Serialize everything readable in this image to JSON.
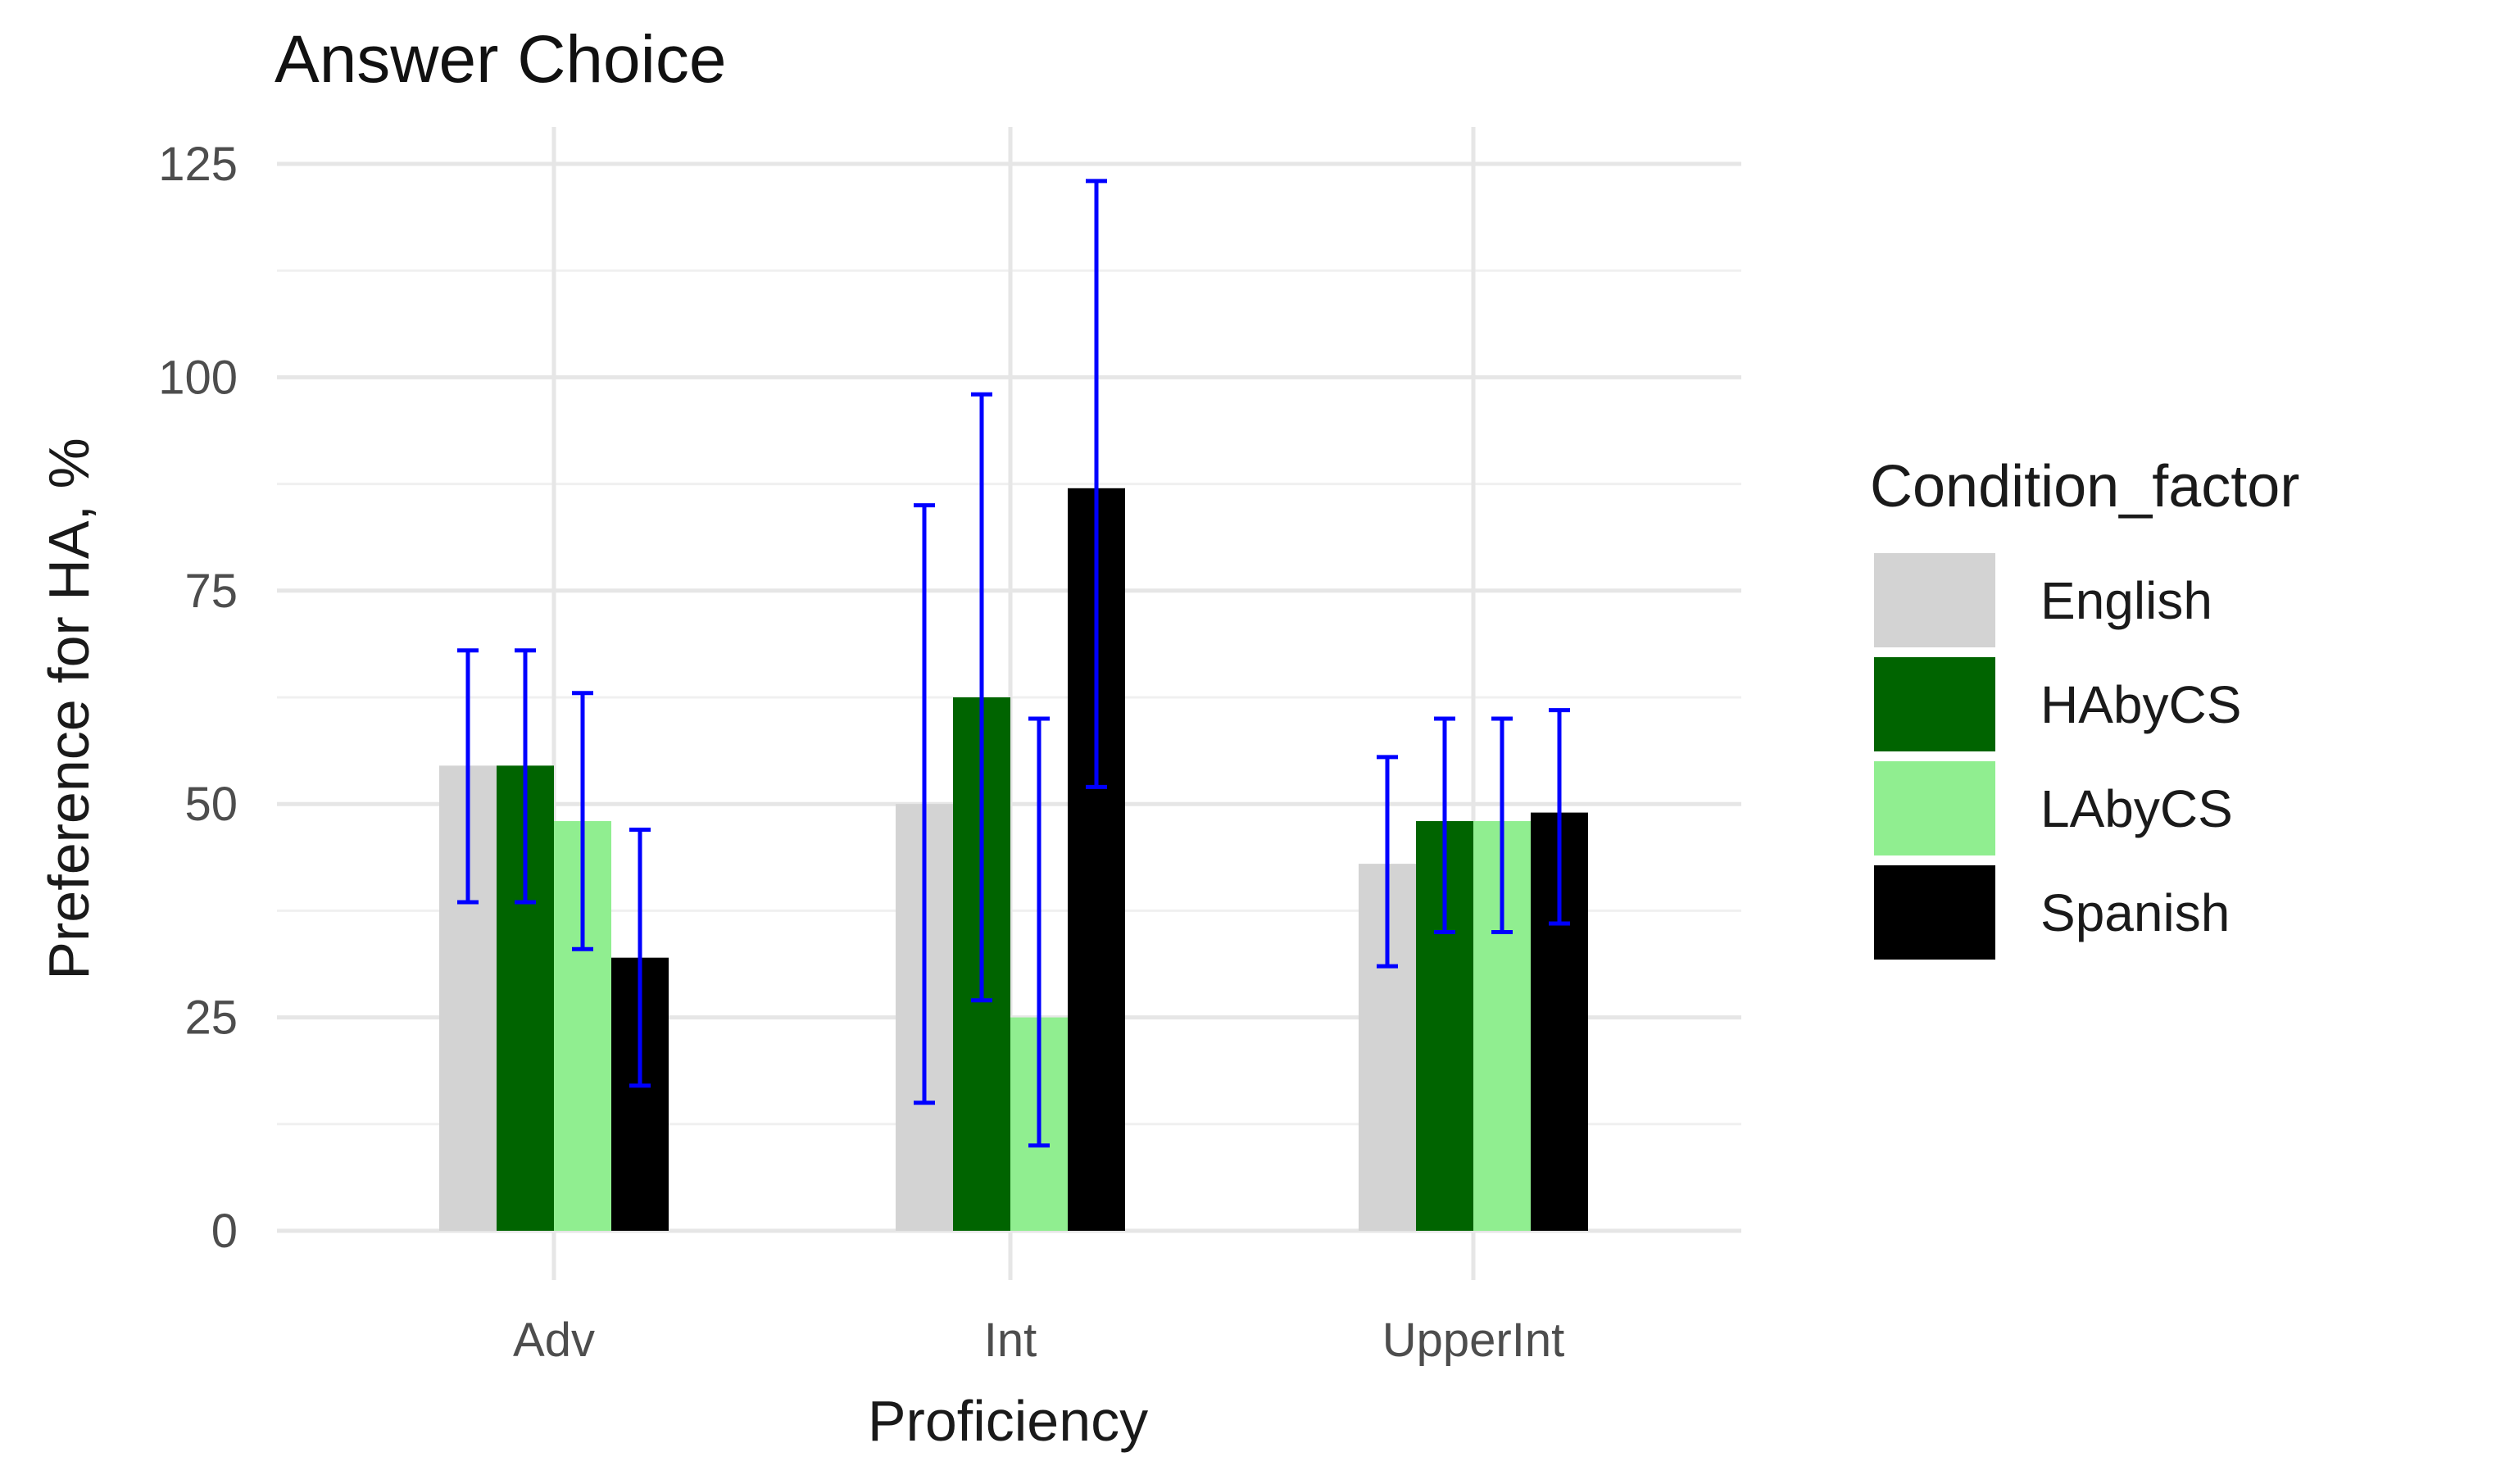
{
  "chart_data": {
    "type": "bar",
    "title": "Answer Choice",
    "xlabel": "Proficiency",
    "ylabel": "Preference for HA, %",
    "categories": [
      "Adv",
      "Int",
      "UpperInt"
    ],
    "ylim": [
      0,
      125
    ],
    "yticks": [
      0,
      25,
      50,
      75,
      100,
      125
    ],
    "grid": true,
    "legend": {
      "title": "Condition_factor",
      "placement": "right"
    },
    "error_bar_color": "#0000ff",
    "series": [
      {
        "name": "English",
        "color": "#d3d3d3",
        "values": [
          54.5,
          50,
          43
        ],
        "error_low": [
          38.5,
          15,
          31
        ],
        "error_high": [
          68,
          85,
          55.5
        ]
      },
      {
        "name": "HAbyCS",
        "color": "#006400",
        "values": [
          54.5,
          62.5,
          48
        ],
        "error_low": [
          38.5,
          27,
          35
        ],
        "error_high": [
          68,
          98,
          60
        ]
      },
      {
        "name": "LAbyCS",
        "color": "#90ee90",
        "values": [
          48,
          25,
          48
        ],
        "error_low": [
          33,
          10,
          35
        ],
        "error_high": [
          63,
          60,
          60
        ]
      },
      {
        "name": "Spanish",
        "color": "#000000",
        "values": [
          32,
          87,
          49
        ],
        "error_low": [
          17,
          52,
          36
        ],
        "error_high": [
          47,
          123,
          61
        ]
      }
    ]
  }
}
